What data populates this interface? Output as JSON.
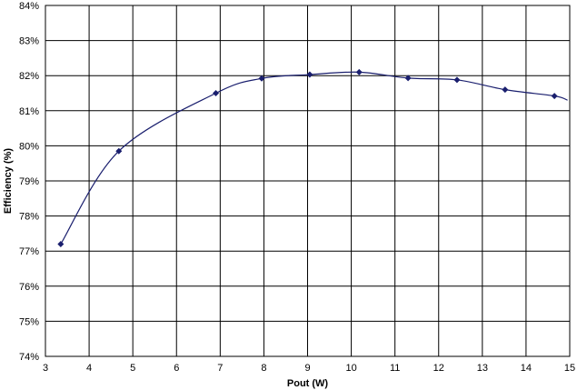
{
  "chart_data": {
    "type": "line",
    "xlabel": "Pout (W)",
    "ylabel": "Efficiency (%)",
    "xlim": [
      3,
      15
    ],
    "ylim": [
      74,
      84
    ],
    "x_ticks": [
      "3",
      "4",
      "5",
      "6",
      "7",
      "8",
      "9",
      "10",
      "11",
      "12",
      "13",
      "14",
      "15"
    ],
    "y_ticks": [
      "74%",
      "75%",
      "76%",
      "77%",
      "78%",
      "79%",
      "80%",
      "81%",
      "82%",
      "83%",
      "84%"
    ],
    "grid": true,
    "legend": "none",
    "series": [
      {
        "color": "#1a1f6e",
        "marker": "diamond",
        "points": [
          {
            "x": 3.35,
            "y": 77.2
          },
          {
            "x": 4.68,
            "y": 79.85
          },
          {
            "x": 6.9,
            "y": 81.5
          },
          {
            "x": 7.95,
            "y": 81.92
          },
          {
            "x": 9.05,
            "y": 82.03
          },
          {
            "x": 10.18,
            "y": 82.1
          },
          {
            "x": 11.3,
            "y": 81.93
          },
          {
            "x": 12.42,
            "y": 81.88
          },
          {
            "x": 13.52,
            "y": 81.6
          },
          {
            "x": 14.65,
            "y": 81.42
          }
        ],
        "curve_end": {
          "x": 14.95,
          "y": 81.3
        }
      }
    ]
  }
}
